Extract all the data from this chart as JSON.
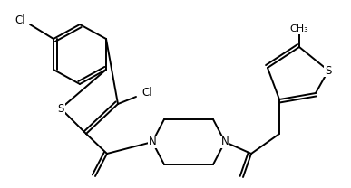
{
  "figsize": [
    3.87,
    2.08
  ],
  "dpi": 100,
  "bg": "#ffffff",
  "lc": "#000000",
  "lw": 1.4,
  "fs": 8.5,
  "xlim": [
    0,
    387
  ],
  "ylim": [
    0,
    208
  ],
  "bonds": [],
  "labels": []
}
